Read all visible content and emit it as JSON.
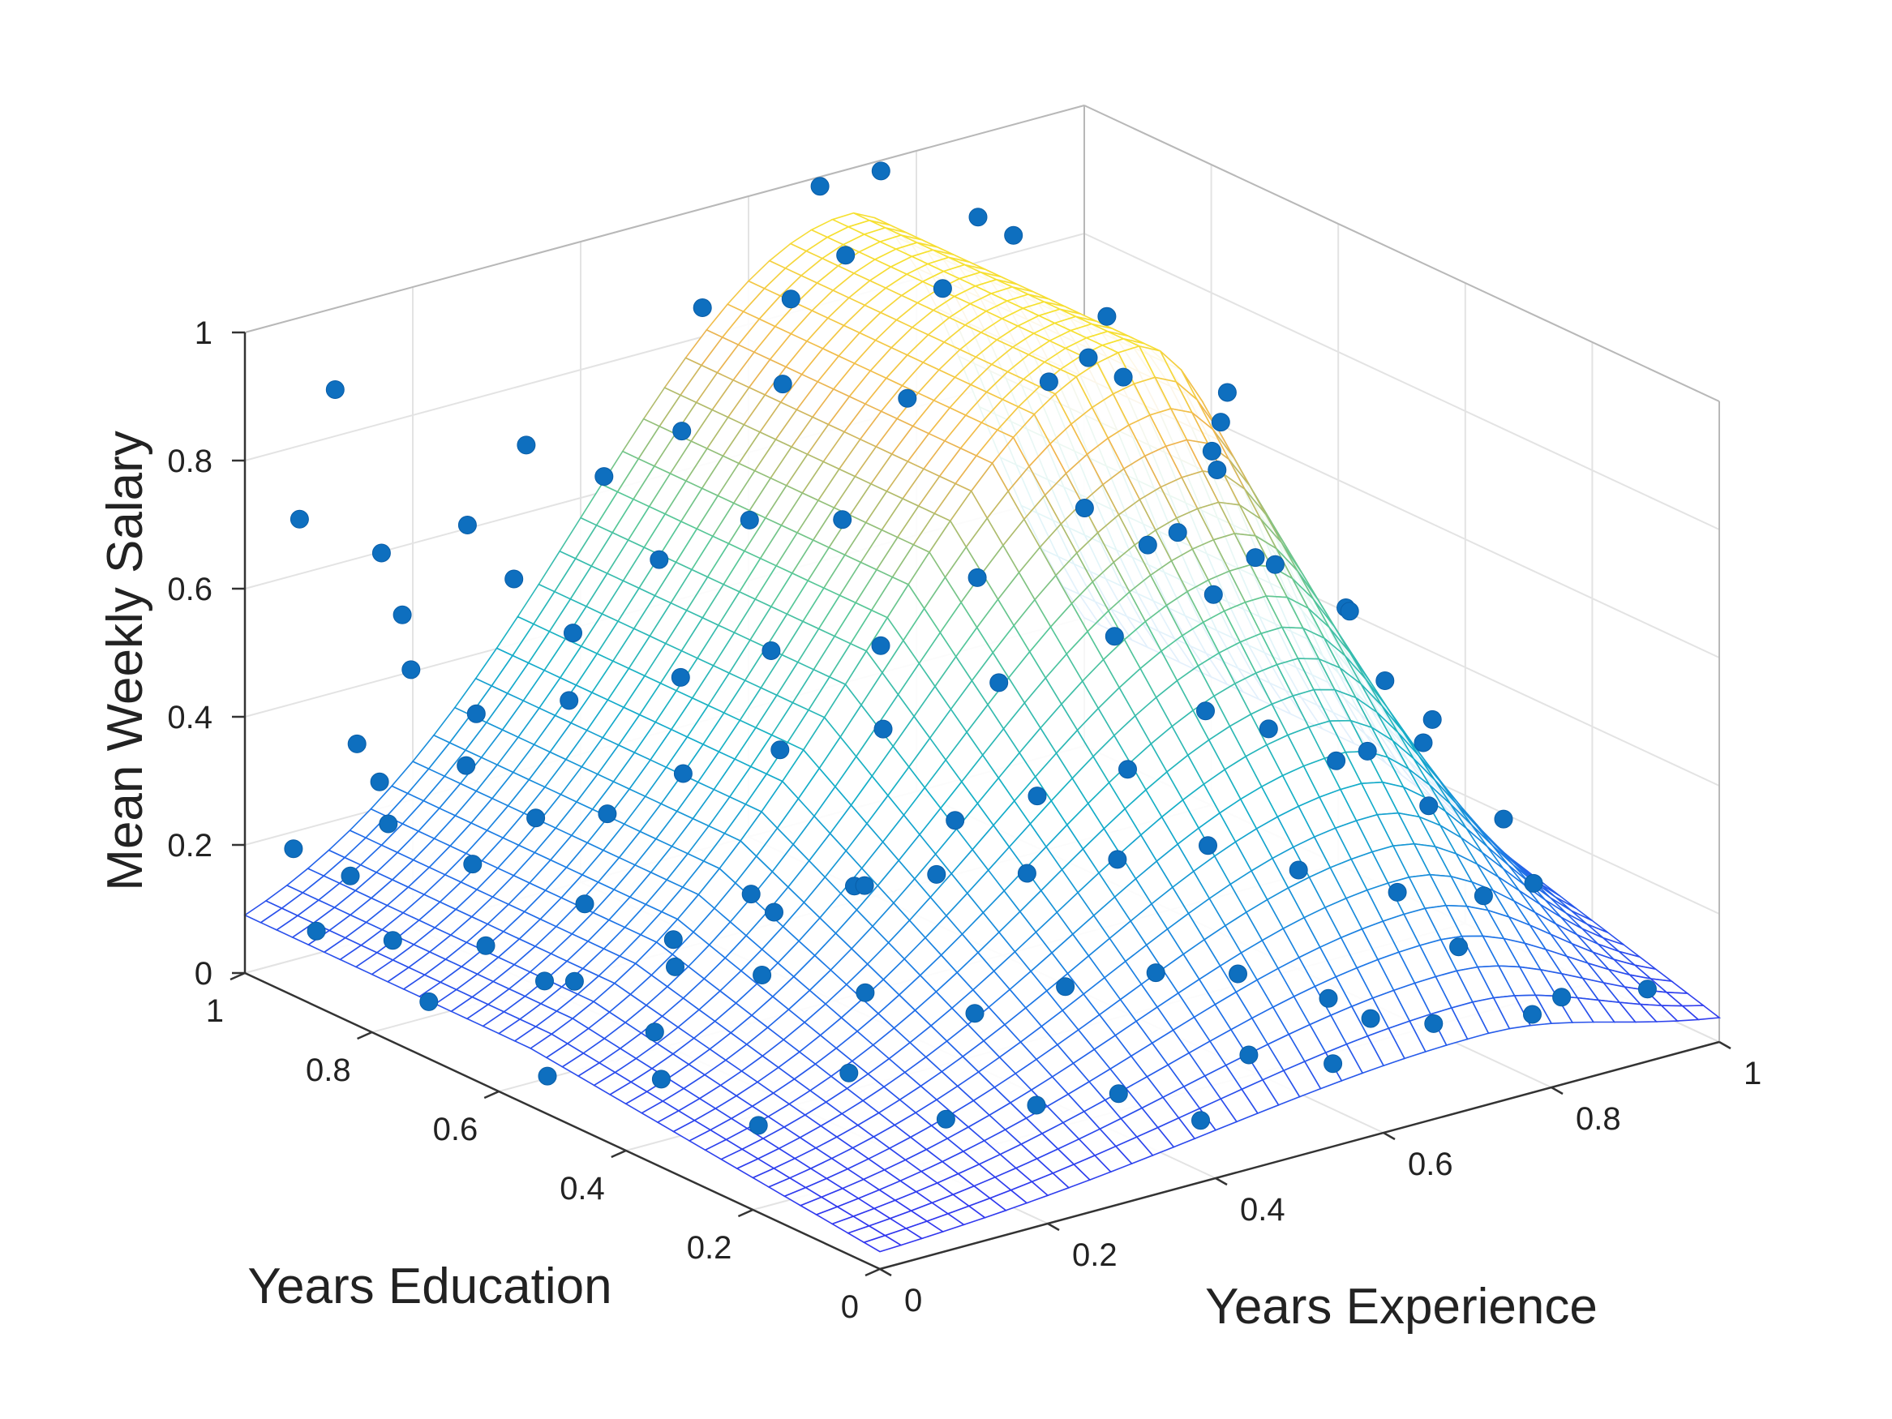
{
  "chart_data": {
    "type": "surface-scatter-3d",
    "title": "",
    "xlabel": "Years Experience",
    "ylabel": "Years Education",
    "zlabel": "Mean Weekly Salary",
    "xlim": [
      0,
      1
    ],
    "ylim": [
      0,
      1
    ],
    "zlim": [
      0,
      1
    ],
    "x_ticks": [
      "0",
      "0.2",
      "0.4",
      "0.6",
      "0.8",
      "1"
    ],
    "y_ticks": [
      "0",
      "0.2",
      "0.4",
      "0.6",
      "0.8",
      "1"
    ],
    "z_ticks": [
      "0",
      "0.2",
      "0.4",
      "0.6",
      "0.8",
      "1"
    ],
    "grid": true,
    "colormap": "parula",
    "surface": {
      "x": [
        0,
        0.05,
        0.1,
        0.15,
        0.2,
        0.25,
        0.3,
        0.35,
        0.4,
        0.45,
        0.5,
        0.55,
        0.6,
        0.65,
        0.7,
        0.75,
        0.8,
        0.85,
        0.9,
        0.95,
        1
      ],
      "y": [
        0,
        0.05,
        0.1,
        0.15,
        0.2,
        0.25,
        0.3,
        0.35,
        0.4,
        0.45,
        0.5,
        0.55,
        0.6,
        0.65,
        0.7,
        0.75,
        0.8,
        0.85,
        0.9,
        0.95,
        1
      ],
      "z_model": {
        "base": 0.02,
        "ridge_amplitude": 0.91,
        "ridge_center_x": 0.72,
        "ridge_width_left": 0.45,
        "ridge_width_right": 0.22,
        "education_floor": 0.1,
        "education_slope": 0.9,
        "education_saturation": 0.55
      }
    },
    "points": [
      {
        "x": 0.02,
        "y": 0.95,
        "z": 0.21
      },
      {
        "x": 0.05,
        "y": 0.9,
        "z": 0.18
      },
      {
        "x": 0.08,
        "y": 0.88,
        "z": 0.26
      },
      {
        "x": 0.04,
        "y": 0.82,
        "z": 0.12
      },
      {
        "x": 0.1,
        "y": 0.92,
        "z": 0.3
      },
      {
        "x": 0.12,
        "y": 0.8,
        "z": 0.22
      },
      {
        "x": 0.06,
        "y": 0.7,
        "z": 0.16
      },
      {
        "x": 0.15,
        "y": 0.85,
        "z": 0.34
      },
      {
        "x": 0.18,
        "y": 0.78,
        "z": 0.28
      },
      {
        "x": 0.2,
        "y": 0.9,
        "z": 0.38
      },
      {
        "x": 0.22,
        "y": 0.72,
        "z": 0.3
      },
      {
        "x": 0.09,
        "y": 0.6,
        "z": 0.14
      },
      {
        "x": 0.25,
        "y": 0.82,
        "z": 0.42
      },
      {
        "x": 0.14,
        "y": 0.65,
        "z": 0.22
      },
      {
        "x": 0.28,
        "y": 0.68,
        "z": 0.36
      },
      {
        "x": 0.3,
        "y": 0.88,
        "z": 0.48
      },
      {
        "x": 0.11,
        "y": 0.5,
        "z": 0.1
      },
      {
        "x": 0.17,
        "y": 0.55,
        "z": 0.2
      },
      {
        "x": 0.33,
        "y": 0.75,
        "z": 0.46
      },
      {
        "x": 0.2,
        "y": 0.45,
        "z": 0.18
      },
      {
        "x": 0.35,
        "y": 0.62,
        "z": 0.4
      },
      {
        "x": 0.24,
        "y": 0.52,
        "z": 0.26
      },
      {
        "x": 0.38,
        "y": 0.85,
        "z": 0.58
      },
      {
        "x": 0.4,
        "y": 0.7,
        "z": 0.5
      },
      {
        "x": 0.27,
        "y": 0.38,
        "z": 0.16
      },
      {
        "x": 0.42,
        "y": 0.55,
        "z": 0.44
      },
      {
        "x": 0.31,
        "y": 0.45,
        "z": 0.28
      },
      {
        "x": 0.45,
        "y": 0.8,
        "z": 0.64
      },
      {
        "x": 0.47,
        "y": 0.62,
        "z": 0.52
      },
      {
        "x": 0.34,
        "y": 0.3,
        "z": 0.14
      },
      {
        "x": 0.5,
        "y": 0.72,
        "z": 0.66
      },
      {
        "x": 0.52,
        "y": 0.5,
        "z": 0.5
      },
      {
        "x": 0.37,
        "y": 0.4,
        "z": 0.3
      },
      {
        "x": 0.55,
        "y": 0.88,
        "z": 0.78
      },
      {
        "x": 0.57,
        "y": 0.6,
        "z": 0.6
      },
      {
        "x": 0.41,
        "y": 0.25,
        "z": 0.18
      },
      {
        "x": 0.6,
        "y": 0.75,
        "z": 0.8
      },
      {
        "x": 0.62,
        "y": 0.45,
        "z": 0.56
      },
      {
        "x": 0.44,
        "y": 0.35,
        "z": 0.3
      },
      {
        "x": 0.64,
        "y": 0.9,
        "z": 0.94
      },
      {
        "x": 0.66,
        "y": 0.55,
        "z": 0.7
      },
      {
        "x": 0.48,
        "y": 0.2,
        "z": 0.2
      },
      {
        "x": 0.68,
        "y": 0.8,
        "z": 0.92
      },
      {
        "x": 0.7,
        "y": 0.4,
        "z": 0.62
      },
      {
        "x": 0.51,
        "y": 0.3,
        "z": 0.32
      },
      {
        "x": 0.72,
        "y": 0.95,
        "z": 1.02
      },
      {
        "x": 0.74,
        "y": 0.65,
        "z": 0.86
      },
      {
        "x": 0.54,
        "y": 0.15,
        "z": 0.2
      },
      {
        "x": 0.76,
        "y": 0.85,
        "z": 0.98
      },
      {
        "x": 0.78,
        "y": 0.5,
        "z": 0.74
      },
      {
        "x": 0.58,
        "y": 0.25,
        "z": 0.34
      },
      {
        "x": 0.8,
        "y": 0.7,
        "z": 0.88
      },
      {
        "x": 0.82,
        "y": 0.35,
        "z": 0.58
      },
      {
        "x": 0.61,
        "y": 0.1,
        "z": 0.16
      },
      {
        "x": 0.84,
        "y": 0.9,
        "z": 0.9
      },
      {
        "x": 0.86,
        "y": 0.6,
        "z": 0.74
      },
      {
        "x": 0.65,
        "y": 0.2,
        "z": 0.3
      },
      {
        "x": 0.88,
        "y": 0.78,
        "z": 0.72
      },
      {
        "x": 0.9,
        "y": 0.45,
        "z": 0.5
      },
      {
        "x": 0.69,
        "y": 0.3,
        "z": 0.46
      },
      {
        "x": 0.92,
        "y": 0.95,
        "z": 0.62
      },
      {
        "x": 0.94,
        "y": 0.62,
        "z": 0.48
      },
      {
        "x": 0.73,
        "y": 0.15,
        "z": 0.26
      },
      {
        "x": 0.96,
        "y": 0.8,
        "z": 0.44
      },
      {
        "x": 0.98,
        "y": 0.5,
        "z": 0.34
      },
      {
        "x": 0.77,
        "y": 0.25,
        "z": 0.42
      },
      {
        "x": 1.0,
        "y": 0.9,
        "z": 0.36
      },
      {
        "x": 0.97,
        "y": 0.3,
        "z": 0.22
      },
      {
        "x": 0.81,
        "y": 0.12,
        "z": 0.24
      },
      {
        "x": 0.99,
        "y": 0.1,
        "z": 0.04
      },
      {
        "x": 0.93,
        "y": 0.2,
        "z": 0.18
      },
      {
        "x": 0.85,
        "y": 0.05,
        "z": 0.1
      },
      {
        "x": 0.03,
        "y": 0.75,
        "z": 0.06
      },
      {
        "x": 0.07,
        "y": 0.98,
        "z": 0.05
      },
      {
        "x": 0.13,
        "y": 0.7,
        "z": 0.08
      },
      {
        "x": 0.16,
        "y": 0.95,
        "z": 0.44
      },
      {
        "x": 0.21,
        "y": 0.6,
        "z": 0.12
      },
      {
        "x": 0.26,
        "y": 0.92,
        "z": 0.56
      },
      {
        "x": 0.29,
        "y": 0.55,
        "z": 0.2
      },
      {
        "x": 0.32,
        "y": 0.98,
        "z": 0.72
      },
      {
        "x": 0.36,
        "y": 0.5,
        "z": 0.24
      },
      {
        "x": 0.39,
        "y": 0.95,
        "z": 0.66
      },
      {
        "x": 0.43,
        "y": 0.45,
        "z": 0.34
      },
      {
        "x": 0.46,
        "y": 0.92,
        "z": 0.72
      },
      {
        "x": 0.49,
        "y": 0.4,
        "z": 0.38
      },
      {
        "x": 0.53,
        "y": 0.98,
        "z": 0.86
      },
      {
        "x": 0.56,
        "y": 0.35,
        "z": 0.42
      },
      {
        "x": 0.59,
        "y": 0.92,
        "z": 0.88
      },
      {
        "x": 0.63,
        "y": 0.32,
        "z": 0.5
      },
      {
        "x": 0.67,
        "y": 0.98,
        "z": 1.0
      },
      {
        "x": 0.71,
        "y": 0.22,
        "z": 0.44
      },
      {
        "x": 0.75,
        "y": 0.4,
        "z": 0.66
      },
      {
        "x": 0.79,
        "y": 0.18,
        "z": 0.36
      },
      {
        "x": 0.83,
        "y": 0.55,
        "z": 0.82
      },
      {
        "x": 0.87,
        "y": 0.28,
        "z": 0.42
      },
      {
        "x": 0.91,
        "y": 0.68,
        "z": 0.64
      },
      {
        "x": 0.95,
        "y": 0.4,
        "z": 0.3
      },
      {
        "x": 0.02,
        "y": 0.55,
        "z": 0.04
      },
      {
        "x": 0.08,
        "y": 0.45,
        "z": 0.06
      },
      {
        "x": 0.12,
        "y": 0.35,
        "z": 0.02
      },
      {
        "x": 0.19,
        "y": 0.3,
        "z": 0.1
      },
      {
        "x": 0.23,
        "y": 0.2,
        "z": 0.06
      },
      {
        "x": 0.3,
        "y": 0.15,
        "z": 0.08
      },
      {
        "x": 0.36,
        "y": 0.1,
        "z": 0.1
      },
      {
        "x": 0.42,
        "y": 0.05,
        "z": 0.06
      },
      {
        "x": 0.5,
        "y": 0.08,
        "z": 0.12
      },
      {
        "x": 0.57,
        "y": 0.04,
        "z": 0.1
      },
      {
        "x": 0.63,
        "y": 0.06,
        "z": 0.14
      },
      {
        "x": 0.69,
        "y": 0.04,
        "z": 0.12
      },
      {
        "x": 0.75,
        "y": 0.08,
        "z": 0.2
      },
      {
        "x": 0.8,
        "y": 0.03,
        "z": 0.1
      },
      {
        "x": 0.05,
        "y": 0.98,
        "z": 0.7
      },
      {
        "x": 0.1,
        "y": 0.99,
        "z": 0.88
      },
      {
        "x": 0.02,
        "y": 0.85,
        "z": 0.42
      },
      {
        "x": 0.14,
        "y": 0.97,
        "z": 0.62
      },
      {
        "x": 0.18,
        "y": 0.99,
        "z": 0.5
      },
      {
        "x": 0.25,
        "y": 0.98,
        "z": 0.62
      }
    ]
  }
}
